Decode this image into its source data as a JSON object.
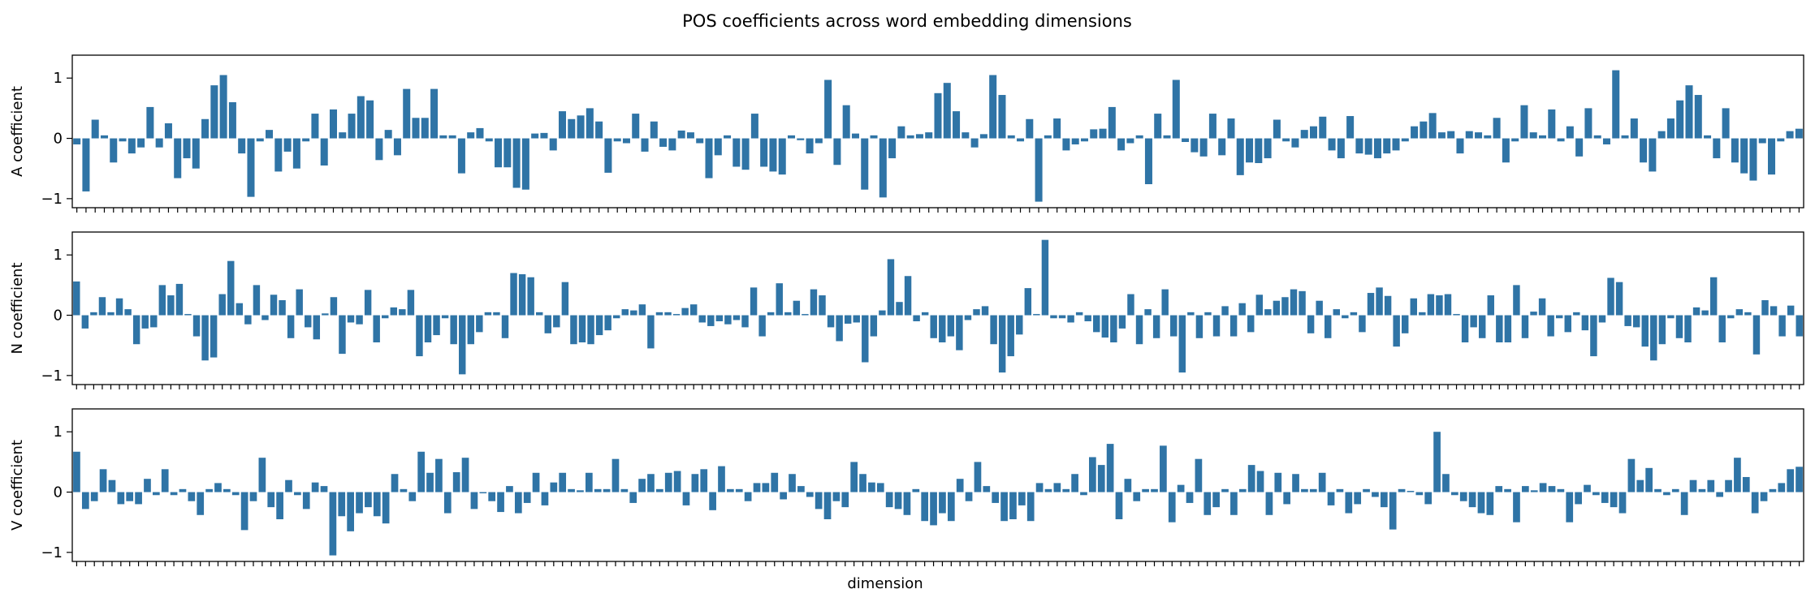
{
  "title": "POS coefficients across word embedding dimensions",
  "chart_data": {
    "type": "bar",
    "title": "POS coefficients across word embedding dimensions",
    "xlabel": "dimension",
    "bar_color": "#2f74a6",
    "ylim": [
      -1.15,
      1.38
    ],
    "yticks": [
      -1,
      0,
      1
    ],
    "xtick_labels_visible": false,
    "grid": false,
    "panels": [
      {
        "ylabel": "A coefficient",
        "values": [
          -0.1,
          -0.88,
          0.31,
          0.05,
          -0.4,
          -0.05,
          -0.25,
          -0.15,
          0.52,
          -0.15,
          0.25,
          -0.66,
          -0.33,
          -0.5,
          0.32,
          0.88,
          1.05,
          0.6,
          -0.25,
          -0.97,
          -0.05,
          0.14,
          -0.55,
          -0.22,
          -0.5,
          -0.05,
          0.41,
          -0.45,
          0.48,
          0.1,
          0.41,
          0.7,
          0.63,
          -0.36,
          0.14,
          -0.28,
          0.82,
          0.34,
          0.34,
          0.82,
          0.05,
          0.05,
          -0.58,
          0.1,
          0.17,
          -0.05,
          -0.48,
          -0.48,
          -0.82,
          -0.85,
          0.08,
          0.09,
          -0.2,
          0.45,
          0.32,
          0.38,
          0.5,
          0.28,
          -0.57,
          -0.05,
          -0.08,
          0.41,
          -0.22,
          0.28,
          -0.14,
          -0.2,
          0.13,
          0.1,
          -0.08,
          -0.66,
          -0.28,
          0.05,
          -0.47,
          -0.52,
          0.41,
          -0.47,
          -0.55,
          -0.6,
          0.05,
          -0.03,
          -0.25,
          -0.08,
          0.97,
          -0.44,
          0.55,
          0.08,
          -0.85,
          0.05,
          -0.98,
          -0.33,
          0.2,
          0.05,
          0.07,
          0.1,
          0.75,
          0.92,
          0.45,
          0.1,
          -0.15,
          0.07,
          1.05,
          0.72,
          0.05,
          -0.05,
          0.32,
          -1.05,
          0.05,
          0.33,
          -0.2,
          -0.1,
          -0.05,
          0.15,
          0.16,
          0.52,
          -0.2,
          -0.08,
          0.05,
          -0.76,
          0.41,
          0.05,
          0.97,
          -0.06,
          -0.23,
          -0.3,
          0.41,
          -0.28,
          0.33,
          -0.61,
          -0.4,
          -0.41,
          -0.33,
          0.31,
          -0.05,
          -0.15,
          0.14,
          0.2,
          0.36,
          -0.2,
          -0.33,
          0.37,
          -0.25,
          -0.27,
          -0.33,
          -0.25,
          -0.2,
          -0.05,
          0.2,
          0.28,
          0.42,
          0.1,
          0.12,
          -0.25,
          0.12,
          0.1,
          0.05,
          0.34,
          -0.4,
          -0.05,
          0.55,
          0.1,
          0.05,
          0.48,
          -0.05,
          0.2,
          -0.3,
          0.5,
          0.05,
          -0.1,
          1.13,
          0.05,
          0.33,
          -0.4,
          -0.55,
          0.12,
          0.33,
          0.63,
          0.88,
          0.72,
          0.05,
          -0.33,
          0.5,
          -0.4,
          -0.58,
          -0.7,
          -0.08,
          -0.6,
          -0.05,
          0.12,
          0.16
        ]
      },
      {
        "ylabel": "N coefficient",
        "values": [
          0.56,
          -0.22,
          0.05,
          0.3,
          0.05,
          0.28,
          0.1,
          -0.48,
          -0.22,
          -0.2,
          0.5,
          0.33,
          0.52,
          0.02,
          -0.35,
          -0.75,
          -0.7,
          0.35,
          0.9,
          0.2,
          -0.15,
          0.5,
          -0.08,
          0.34,
          0.25,
          -0.38,
          0.43,
          -0.2,
          -0.4,
          0.03,
          0.3,
          -0.64,
          -0.12,
          -0.15,
          0.42,
          -0.45,
          -0.05,
          0.13,
          0.1,
          0.42,
          -0.68,
          -0.45,
          -0.33,
          -0.05,
          -0.48,
          -0.98,
          -0.48,
          -0.28,
          0.05,
          0.05,
          -0.38,
          0.7,
          0.68,
          0.63,
          0.05,
          -0.3,
          -0.2,
          0.55,
          -0.48,
          -0.45,
          -0.48,
          -0.33,
          -0.25,
          -0.05,
          0.1,
          0.08,
          0.18,
          -0.55,
          0.05,
          0.05,
          0.02,
          0.12,
          0.18,
          -0.12,
          -0.18,
          -0.1,
          -0.15,
          -0.08,
          -0.2,
          0.46,
          -0.35,
          0.05,
          0.53,
          0.05,
          0.24,
          0.02,
          0.43,
          0.33,
          -0.2,
          -0.43,
          -0.14,
          -0.12,
          -0.78,
          -0.35,
          0.08,
          0.93,
          0.22,
          0.65,
          -0.1,
          0.05,
          -0.38,
          -0.45,
          -0.35,
          -0.58,
          -0.08,
          0.1,
          0.15,
          -0.48,
          -0.95,
          -0.68,
          -0.32,
          0.45,
          0.02,
          1.25,
          -0.05,
          -0.05,
          -0.12,
          0.05,
          -0.1,
          -0.28,
          -0.37,
          -0.45,
          -0.22,
          0.35,
          -0.48,
          0.1,
          -0.38,
          0.43,
          -0.35,
          -0.95,
          0.05,
          -0.38,
          0.05,
          -0.35,
          0.15,
          -0.35,
          0.2,
          -0.28,
          0.34,
          0.1,
          0.24,
          0.3,
          0.43,
          0.4,
          -0.3,
          0.24,
          -0.38,
          0.1,
          -0.05,
          0.05,
          -0.28,
          0.37,
          0.46,
          0.32,
          -0.52,
          -0.3,
          0.28,
          0.05,
          0.35,
          0.33,
          0.35,
          0.02,
          -0.45,
          -0.2,
          -0.38,
          0.33,
          -0.45,
          -0.45,
          0.5,
          -0.38,
          0.06,
          0.28,
          -0.35,
          -0.05,
          -0.28,
          0.05,
          -0.25,
          -0.68,
          -0.12,
          0.62,
          0.55,
          -0.18,
          -0.2,
          -0.52,
          -0.75,
          -0.48,
          -0.05,
          -0.38,
          -0.45,
          0.13,
          0.08,
          0.63,
          -0.45,
          -0.05,
          0.1,
          0.05,
          -0.65,
          0.25,
          0.15,
          -0.35,
          0.16,
          -0.35
        ]
      },
      {
        "ylabel": "V coefficient",
        "values": [
          0.67,
          -0.28,
          -0.15,
          0.38,
          0.2,
          -0.2,
          -0.15,
          -0.2,
          0.22,
          -0.05,
          0.38,
          -0.05,
          0.05,
          -0.15,
          -0.38,
          0.05,
          0.15,
          0.05,
          -0.05,
          -0.63,
          -0.15,
          0.57,
          -0.25,
          -0.45,
          0.2,
          -0.05,
          -0.28,
          0.16,
          0.1,
          -1.05,
          -0.4,
          -0.65,
          -0.35,
          -0.25,
          -0.4,
          -0.52,
          0.3,
          0.05,
          -0.15,
          0.67,
          0.32,
          0.55,
          -0.35,
          0.33,
          0.57,
          -0.28,
          -0.02,
          -0.15,
          -0.33,
          0.1,
          -0.35,
          -0.18,
          0.32,
          -0.22,
          0.16,
          0.32,
          0.05,
          0.03,
          0.32,
          0.05,
          0.05,
          0.55,
          0.05,
          -0.18,
          0.22,
          0.3,
          0.05,
          0.32,
          0.35,
          -0.22,
          0.3,
          0.38,
          -0.3,
          0.43,
          0.05,
          0.05,
          -0.15,
          0.15,
          0.15,
          0.32,
          -0.12,
          0.3,
          0.1,
          -0.08,
          -0.28,
          -0.45,
          -0.15,
          -0.25,
          0.5,
          0.3,
          0.16,
          0.15,
          -0.25,
          -0.28,
          -0.38,
          0.05,
          -0.48,
          -0.55,
          -0.35,
          -0.48,
          0.22,
          -0.15,
          0.5,
          0.1,
          -0.18,
          -0.48,
          -0.45,
          -0.22,
          -0.48,
          0.15,
          0.05,
          0.15,
          0.05,
          0.3,
          -0.05,
          0.58,
          0.45,
          0.8,
          -0.45,
          0.22,
          -0.15,
          0.05,
          0.05,
          0.77,
          -0.5,
          0.12,
          -0.18,
          0.55,
          -0.38,
          -0.25,
          0.05,
          -0.38,
          0.05,
          0.45,
          0.35,
          -0.38,
          0.32,
          -0.2,
          0.3,
          0.05,
          0.05,
          0.32,
          -0.22,
          0.05,
          -0.35,
          -0.2,
          0.05,
          -0.08,
          -0.25,
          -0.62,
          0.05,
          0.02,
          -0.05,
          -0.2,
          1.0,
          0.3,
          -0.05,
          -0.15,
          -0.25,
          -0.35,
          -0.38,
          0.1,
          0.05,
          -0.5,
          0.1,
          0.03,
          0.15,
          0.1,
          0.05,
          -0.5,
          -0.2,
          0.12,
          -0.05,
          -0.18,
          -0.25,
          -0.35,
          0.55,
          0.2,
          0.4,
          0.05,
          -0.05,
          0.05,
          -0.38,
          0.2,
          0.05,
          0.2,
          -0.08,
          0.2,
          0.57,
          0.25,
          -0.35,
          -0.15,
          0.05,
          0.15,
          0.38,
          0.42
        ]
      }
    ]
  }
}
